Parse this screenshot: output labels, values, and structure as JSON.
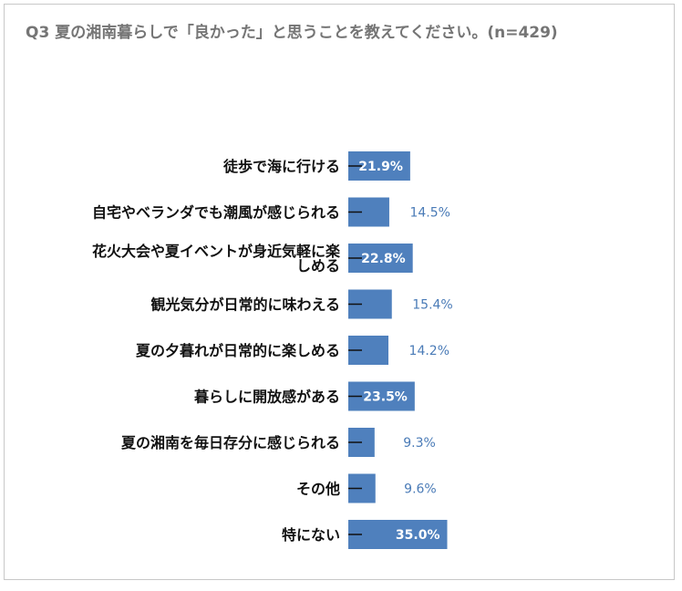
{
  "chart_data": {
    "type": "bar",
    "orientation": "horizontal",
    "title": "Q3 夏の湘南暮らしで「良かった」と思うことを教えてください。(n=429)",
    "categories": [
      "徒歩で海に行ける",
      "自宅やベランダでも潮風が感じられる",
      "花火大会や夏イベントが身近気軽に楽しめる",
      "観光気分が日常的に味わえる",
      "夏の夕暮れが日常的に楽しめる",
      "暮らしに開放感がある",
      "夏の湘南を毎日存分に感じられる",
      "その他",
      "特にない"
    ],
    "values": [
      21.9,
      14.5,
      22.8,
      15.4,
      14.2,
      23.5,
      9.3,
      9.6,
      35.0
    ],
    "value_labels": [
      "21.9%",
      "14.5%",
      "22.8%",
      "15.4%",
      "14.2%",
      "23.5%",
      "9.3%",
      "9.6%",
      "35.0%"
    ],
    "xlim": [
      0,
      100
    ],
    "bar_color": "#4f80bd",
    "inside_label_color": "#ffffff",
    "outside_label_color": "#4a7bb7",
    "grid": false,
    "legend": "none"
  }
}
